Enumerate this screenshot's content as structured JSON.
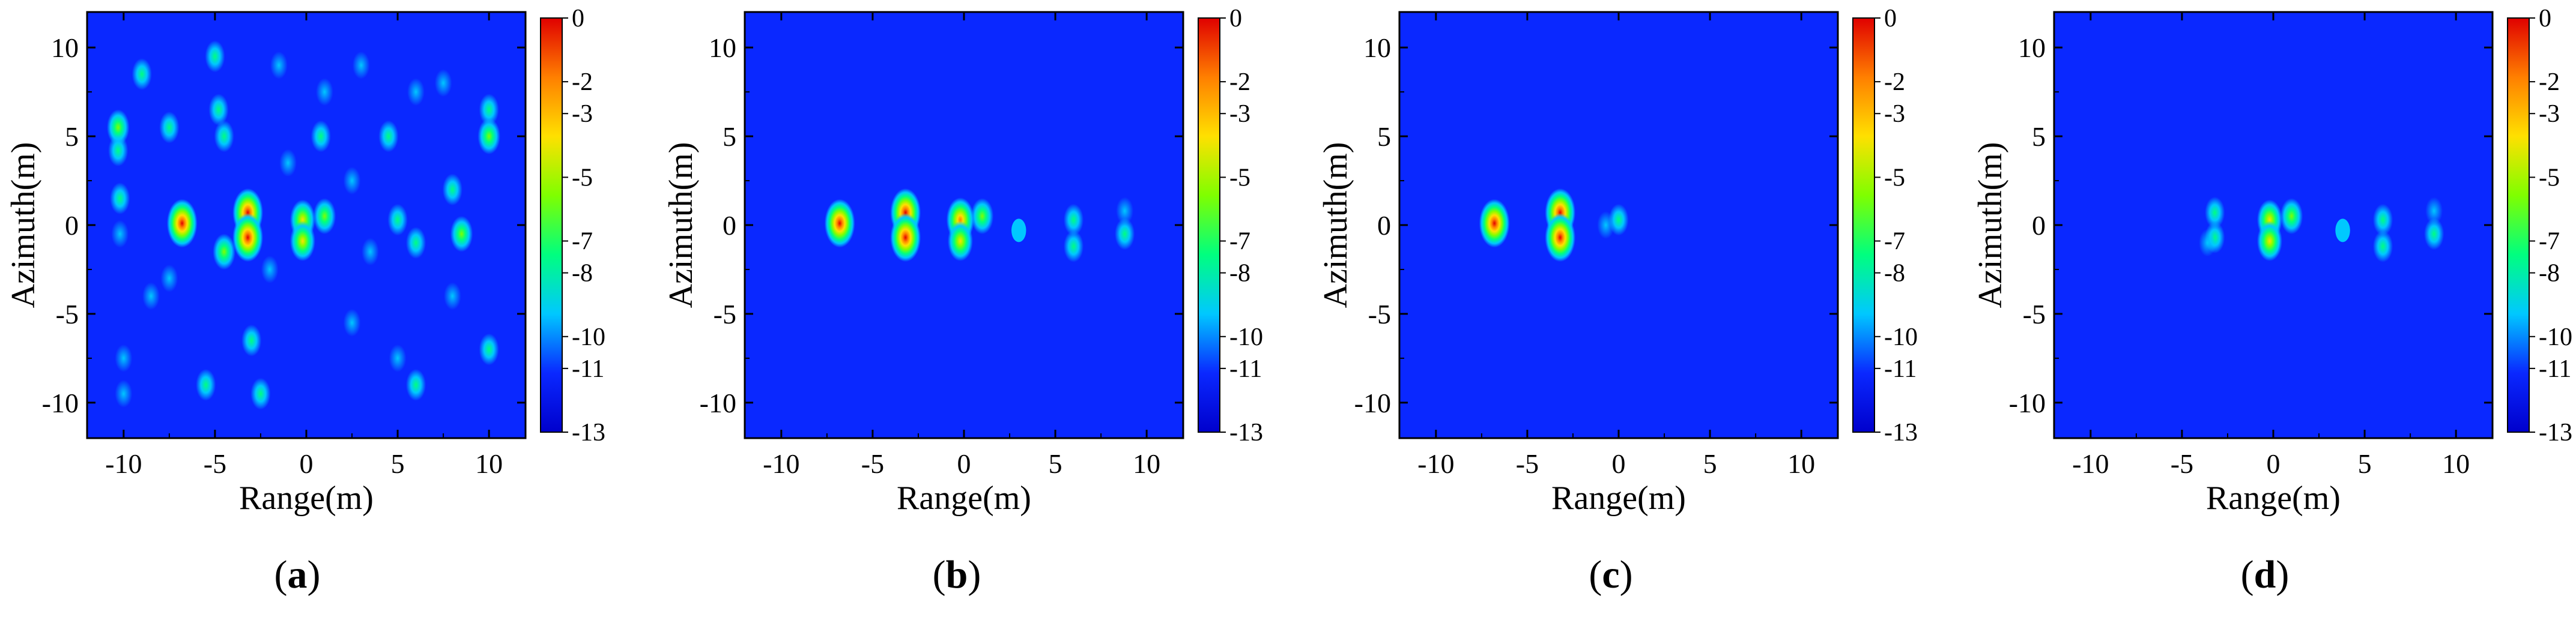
{
  "colors": {
    "background": "#0a28ff",
    "colormap": [
      "#0000cc",
      "#0a28ff",
      "#00c8ff",
      "#00ff7f",
      "#7fff00",
      "#ffe000",
      "#ff7f00",
      "#e00000"
    ]
  },
  "shared": {
    "xlabel": "Range(m)",
    "ylabel": "Azimuth(m)",
    "xlim": [
      -12,
      12
    ],
    "ylim": [
      -12,
      12
    ],
    "xticks": [
      -10,
      -5,
      0,
      5,
      10
    ],
    "yticks": [
      -10,
      -5,
      0,
      5,
      10
    ],
    "colorbar_ticks": [
      0,
      -2,
      -3,
      -5,
      -7,
      -8,
      -10,
      -11,
      -13
    ],
    "colorbar_range": [
      -13,
      0
    ]
  },
  "chart_data": [
    {
      "type": "heatmap",
      "panel": "a",
      "caption": "a",
      "xlabel": "Range(m)",
      "ylabel": "Azimuth(m)",
      "points": [
        {
          "x": -6.8,
          "y": 0.1,
          "value": 0
        },
        {
          "x": -3.2,
          "y": 0.7,
          "value": 0
        },
        {
          "x": -3.2,
          "y": -0.7,
          "value": 0
        },
        {
          "x": -0.2,
          "y": 0.3,
          "value": -3
        },
        {
          "x": -0.2,
          "y": -0.9,
          "value": -3
        },
        {
          "x": 1.0,
          "y": 0.5,
          "value": -5
        },
        {
          "x": -10.3,
          "y": 5.5,
          "value": -5
        },
        {
          "x": -10.3,
          "y": 4.2,
          "value": -7
        },
        {
          "x": 10.0,
          "y": 5.0,
          "value": -5
        },
        {
          "x": 10.0,
          "y": 6.5,
          "value": -7
        },
        {
          "x": 8.5,
          "y": -0.5,
          "value": -5
        },
        {
          "x": 8.0,
          "y": 2.0,
          "value": -7
        },
        {
          "x": -4.5,
          "y": -1.5,
          "value": -5
        },
        {
          "x": -4.8,
          "y": 6.5,
          "value": -8
        },
        {
          "x": -4.5,
          "y": 5.0,
          "value": -8
        },
        {
          "x": -9.0,
          "y": 8.5,
          "value": -8
        },
        {
          "x": -5.0,
          "y": 9.5,
          "value": -8
        },
        {
          "x": -7.5,
          "y": 5.5,
          "value": -8
        },
        {
          "x": 0.8,
          "y": 5.0,
          "value": -8
        },
        {
          "x": 1.0,
          "y": 7.5,
          "value": -10
        },
        {
          "x": 4.5,
          "y": 5.0,
          "value": -8
        },
        {
          "x": 6.0,
          "y": 7.5,
          "value": -10
        },
        {
          "x": 7.5,
          "y": 8.0,
          "value": -10
        },
        {
          "x": -10.2,
          "y": 1.5,
          "value": -8
        },
        {
          "x": -10.2,
          "y": -0.5,
          "value": -10
        },
        {
          "x": -5.5,
          "y": -9.0,
          "value": -8
        },
        {
          "x": -2.5,
          "y": -9.5,
          "value": -8
        },
        {
          "x": 6.0,
          "y": -9.0,
          "value": -8
        },
        {
          "x": 10.0,
          "y": -7.0,
          "value": -8
        },
        {
          "x": -10.0,
          "y": -7.5,
          "value": -10
        },
        {
          "x": -10.0,
          "y": -9.5,
          "value": -10
        },
        {
          "x": -3.0,
          "y": -6.5,
          "value": -8
        },
        {
          "x": 2.5,
          "y": -5.5,
          "value": -10
        },
        {
          "x": 5.0,
          "y": -7.5,
          "value": -10
        },
        {
          "x": 5.0,
          "y": 0.3,
          "value": -8
        },
        {
          "x": 6.0,
          "y": -1.0,
          "value": -8
        },
        {
          "x": -8.5,
          "y": -4.0,
          "value": -10
        },
        {
          "x": -7.5,
          "y": -3.0,
          "value": -10
        },
        {
          "x": 2.5,
          "y": 2.5,
          "value": -10
        },
        {
          "x": -1.5,
          "y": 9.0,
          "value": -10
        },
        {
          "x": 3.0,
          "y": 9.0,
          "value": -10
        },
        {
          "x": 8.0,
          "y": -4.0,
          "value": -10
        },
        {
          "x": -2.0,
          "y": -2.5,
          "value": -10
        },
        {
          "x": 3.5,
          "y": -1.5,
          "value": -10
        },
        {
          "x": -1.0,
          "y": 3.5,
          "value": -10
        }
      ]
    },
    {
      "type": "heatmap",
      "panel": "b",
      "caption": "b",
      "xlabel": "Range(m)",
      "ylabel": "Azimuth(m)",
      "points": [
        {
          "x": -6.8,
          "y": 0.1,
          "value": 0
        },
        {
          "x": -3.2,
          "y": 0.7,
          "value": 0
        },
        {
          "x": -3.2,
          "y": -0.7,
          "value": 0
        },
        {
          "x": -0.2,
          "y": 0.3,
          "value": -2
        },
        {
          "x": -0.2,
          "y": -0.9,
          "value": -3
        },
        {
          "x": 1.0,
          "y": 0.5,
          "value": -5
        },
        {
          "x": 6.0,
          "y": 0.3,
          "value": -8
        },
        {
          "x": 6.0,
          "y": -1.2,
          "value": -8
        },
        {
          "x": 8.8,
          "y": -0.5,
          "value": -8
        },
        {
          "x": 8.8,
          "y": 0.8,
          "value": -10
        },
        {
          "x": 3.0,
          "y": -0.3,
          "value": -11
        }
      ]
    },
    {
      "type": "heatmap",
      "panel": "c",
      "caption": "c",
      "xlabel": "Range(m)",
      "ylabel": "Azimuth(m)",
      "points": [
        {
          "x": -6.8,
          "y": 0.1,
          "value": 0
        },
        {
          "x": -3.2,
          "y": 0.7,
          "value": 0
        },
        {
          "x": -3.2,
          "y": -0.7,
          "value": 0
        },
        {
          "x": 0.0,
          "y": 0.3,
          "value": -7
        },
        {
          "x": -0.7,
          "y": 0.0,
          "value": -10
        }
      ]
    },
    {
      "type": "heatmap",
      "panel": "d",
      "caption": "d",
      "xlabel": "Range(m)",
      "ylabel": "Azimuth(m)",
      "points": [
        {
          "x": -0.2,
          "y": 0.3,
          "value": -3
        },
        {
          "x": -0.2,
          "y": -0.9,
          "value": -3
        },
        {
          "x": 1.0,
          "y": 0.5,
          "value": -5
        },
        {
          "x": -3.2,
          "y": 0.7,
          "value": -8
        },
        {
          "x": -3.2,
          "y": -0.7,
          "value": -8
        },
        {
          "x": -3.6,
          "y": -1.0,
          "value": -10
        },
        {
          "x": 6.0,
          "y": 0.3,
          "value": -8
        },
        {
          "x": 6.0,
          "y": -1.2,
          "value": -8
        },
        {
          "x": 8.8,
          "y": -0.5,
          "value": -8
        },
        {
          "x": 8.8,
          "y": 0.8,
          "value": -10
        },
        {
          "x": 3.8,
          "y": -0.3,
          "value": -11
        }
      ]
    }
  ]
}
